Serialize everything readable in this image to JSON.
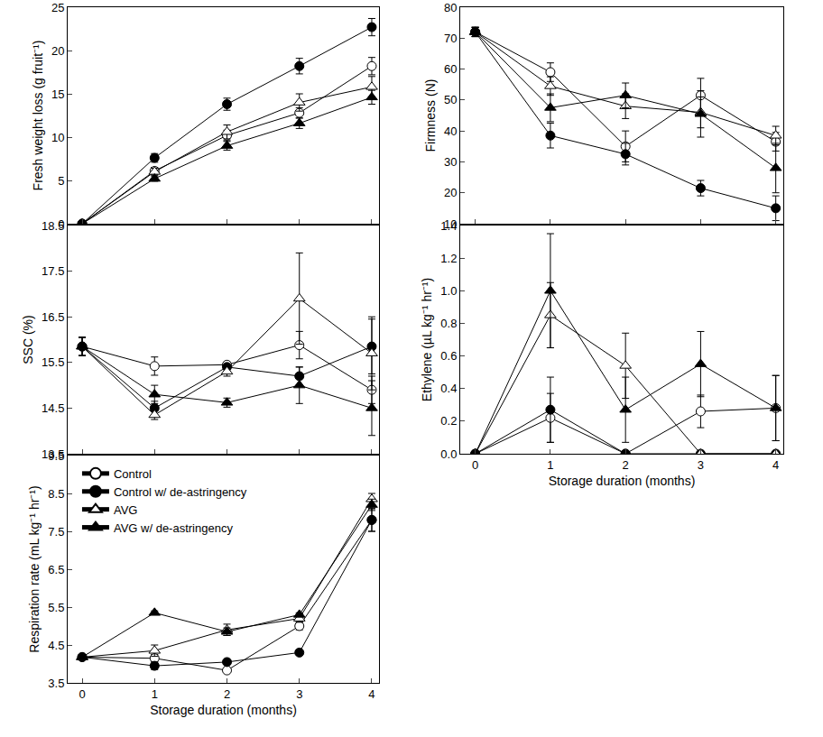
{
  "chart_data": [
    {
      "type": "line",
      "y_label": "Fresh weight loss (g fruit⁻¹)",
      "x": [
        0,
        1,
        2,
        3,
        4
      ],
      "xlim": [
        -0.2,
        4.1
      ],
      "xticks": [
        0,
        1,
        2,
        3,
        4
      ],
      "ylim": [
        0,
        25
      ],
      "yticks": [
        0,
        5,
        10,
        15,
        20,
        25
      ],
      "grid": false,
      "tick_labels": "y",
      "series": [
        {
          "name": "Control",
          "color": "#000000",
          "marker": "open circle",
          "values": [
            0,
            6.1,
            10.2,
            12.8,
            18.2
          ],
          "errors": [
            0,
            0.4,
            0.6,
            0.6,
            1.0
          ]
        },
        {
          "name": "Control w/ de-astringency",
          "color": "#000000",
          "marker": "filled circle",
          "values": [
            0,
            7.6,
            13.8,
            18.2,
            22.7
          ],
          "errors": [
            0,
            0.5,
            0.7,
            0.9,
            1.0
          ]
        },
        {
          "name": "AVG",
          "color": "#000000",
          "marker": "open triangle",
          "values": [
            0,
            6.0,
            10.6,
            14.0,
            15.8
          ],
          "errors": [
            0,
            0.4,
            0.8,
            1.0,
            1.2
          ]
        },
        {
          "name": "AVG w/ de-astringency",
          "color": "#000000",
          "marker": "filled triangle",
          "values": [
            0,
            5.2,
            9.0,
            11.6,
            14.6
          ],
          "errors": [
            0,
            0.3,
            0.5,
            0.6,
            0.8
          ]
        }
      ]
    },
    {
      "type": "line",
      "y_label": "Firmness (N)",
      "x": [
        0,
        1,
        2,
        3,
        4
      ],
      "xlim": [
        -0.2,
        4.1
      ],
      "xticks": [
        0,
        1,
        2,
        3,
        4
      ],
      "ylim": [
        10,
        80
      ],
      "yticks": [
        10,
        20,
        30,
        40,
        50,
        60,
        70,
        80
      ],
      "grid": false,
      "tick_labels": "y",
      "series": [
        {
          "name": "Control",
          "color": "#000000",
          "marker": "open circle",
          "values": [
            72,
            59,
            35,
            51.5,
            36.5
          ],
          "errors": [
            1.5,
            3,
            5,
            5.5,
            3
          ]
        },
        {
          "name": "Control w/ de-astringency",
          "color": "#000000",
          "marker": "filled circle",
          "values": [
            72,
            38.5,
            32.5,
            21.5,
            15
          ],
          "errors": [
            1.5,
            4,
            3.5,
            2.5,
            4
          ]
        },
        {
          "name": "AVG",
          "color": "#000000",
          "marker": "open triangle",
          "values": [
            72,
            54.5,
            48,
            46,
            38.5
          ],
          "errors": [
            1.5,
            3,
            4,
            5,
            3
          ]
        },
        {
          "name": "AVG w/ de-astringency",
          "color": "#000000",
          "marker": "filled triangle",
          "values": [
            72,
            47.5,
            51.5,
            45.5,
            28
          ],
          "errors": [
            1.5,
            4.5,
            4,
            7.5,
            8
          ]
        }
      ]
    },
    {
      "type": "line",
      "y_label": "SSC (%)",
      "x": [
        0,
        1,
        2,
        3,
        4
      ],
      "xlim": [
        -0.2,
        4.1
      ],
      "xticks": [
        0,
        1,
        2,
        3,
        4
      ],
      "ylim": [
        13.5,
        18.5
      ],
      "yticks": [
        13.5,
        14.5,
        15.5,
        16.5,
        17.5,
        18.5
      ],
      "grid": false,
      "tick_labels": "y",
      "series": [
        {
          "name": "Control",
          "color": "#000000",
          "marker": "open circle",
          "values": [
            15.85,
            15.42,
            15.45,
            15.88,
            14.9
          ],
          "errors": [
            0.2,
            0.2,
            0.05,
            0.3,
            0.3
          ]
        },
        {
          "name": "Control w/ de-astringency",
          "color": "#000000",
          "marker": "filled circle",
          "values": [
            15.85,
            14.5,
            15.4,
            15.2,
            15.85
          ],
          "errors": [
            0.2,
            0.15,
            0.05,
            0.2,
            0.6
          ]
        },
        {
          "name": "AVG",
          "color": "#000000",
          "marker": "open triangle",
          "values": [
            15.85,
            14.35,
            15.3,
            16.9,
            15.7
          ],
          "errors": [
            0.2,
            0.1,
            0.1,
            1.0,
            0.8
          ]
        },
        {
          "name": "AVG w/ de-astringency",
          "color": "#000000",
          "marker": "filled triangle",
          "values": [
            15.85,
            14.8,
            14.62,
            15.0,
            14.5
          ],
          "errors": [
            0.2,
            0.2,
            0.1,
            0.4,
            0.6
          ]
        }
      ]
    },
    {
      "type": "line",
      "y_label": "Ethylene (µL kg⁻¹ hr⁻¹)",
      "x_label": "Storage duration (months)",
      "x": [
        0,
        1,
        2,
        3,
        4
      ],
      "xlim": [
        -0.2,
        4.1
      ],
      "xticks": [
        0,
        1,
        2,
        3,
        4
      ],
      "ylim": [
        0,
        1.4
      ],
      "yticks": [
        {
          "value": 0,
          "label": "0.0"
        },
        0.2,
        0.4,
        0.6,
        0.8,
        {
          "value": 1,
          "label": "1.0"
        },
        1.2,
        1.4
      ],
      "grid": false,
      "series": [
        {
          "name": "Control",
          "color": "#000000",
          "marker": "open circle",
          "values": [
            0,
            0.22,
            0,
            0.26,
            0.28
          ],
          "errors": [
            0,
            0.15,
            0,
            0.1,
            0.2
          ]
        },
        {
          "name": "Control w/ de-astringency",
          "color": "#000000",
          "marker": "filled circle",
          "values": [
            0,
            0.27,
            0,
            0,
            0
          ],
          "errors": [
            0,
            0.2,
            0,
            0,
            0
          ]
        },
        {
          "name": "AVG",
          "color": "#000000",
          "marker": "open triangle",
          "values": [
            0,
            0.85,
            0.54,
            0,
            0
          ],
          "errors": [
            0,
            0.2,
            0.2,
            0,
            0
          ]
        },
        {
          "name": "AVG w/ de-astringency",
          "color": "#000000",
          "marker": "filled triangle",
          "values": [
            0,
            1.0,
            0.27,
            0.55,
            0.28
          ],
          "errors": [
            0,
            0.35,
            0.2,
            0.2,
            0.2
          ]
        }
      ]
    },
    {
      "type": "line",
      "y_label": "Respiration rate (mL kg⁻¹ hr⁻¹)",
      "x_label": "Storage duration (months)",
      "x": [
        0,
        1,
        2,
        3,
        4
      ],
      "xlim": [
        -0.2,
        4.1
      ],
      "xticks": [
        0,
        1,
        2,
        3,
        4
      ],
      "ylim": [
        3.5,
        9.5
      ],
      "yticks": [
        3.5,
        4.5,
        5.5,
        6.5,
        7.5,
        8.5,
        9.5
      ],
      "grid": false,
      "legend": "upper left",
      "series": [
        {
          "name": "Control",
          "color": "#000000",
          "marker": "open circle",
          "values": [
            4.18,
            4.15,
            3.83,
            5.0,
            7.8
          ],
          "errors": [
            0.05,
            0.1,
            0.05,
            0.1,
            0.3
          ]
        },
        {
          "name": "Control w/ de-astringency",
          "color": "#000000",
          "marker": "filled circle",
          "values": [
            4.18,
            3.95,
            4.05,
            4.3,
            7.8
          ],
          "errors": [
            0.05,
            0.1,
            0.05,
            0.05,
            0.3
          ]
        },
        {
          "name": "AVG",
          "color": "#000000",
          "marker": "open triangle",
          "values": [
            4.18,
            4.35,
            4.9,
            5.2,
            8.35
          ],
          "errors": [
            0.05,
            0.15,
            0.15,
            0.1,
            0.15
          ]
        },
        {
          "name": "AVG w/ de-astringency",
          "color": "#000000",
          "marker": "filled triangle",
          "values": [
            4.18,
            5.35,
            4.85,
            5.3,
            8.2
          ],
          "errors": [
            0.05,
            0.05,
            0.1,
            0.05,
            0.15
          ]
        }
      ]
    }
  ]
}
